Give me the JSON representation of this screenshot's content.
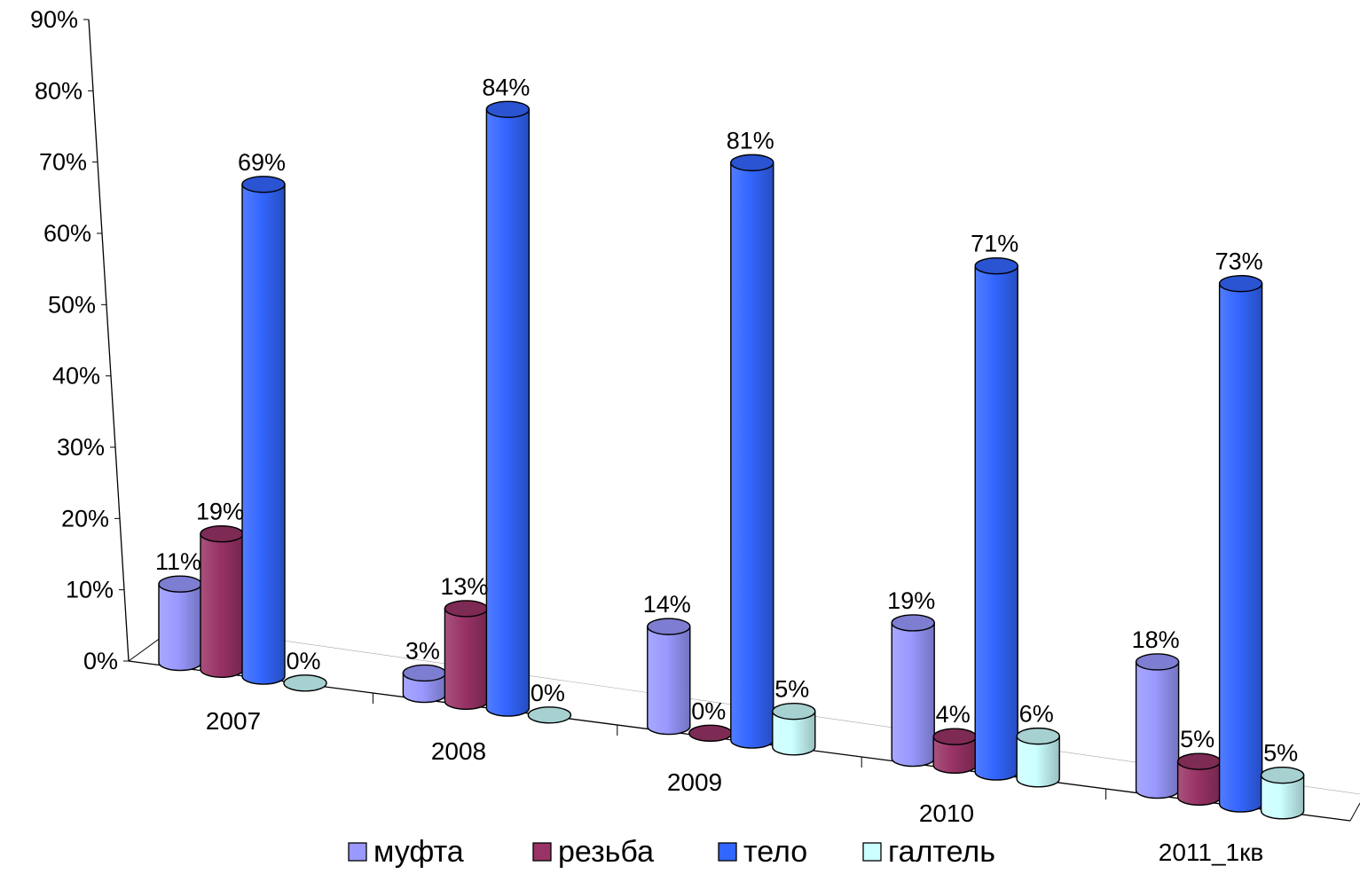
{
  "chart_data": {
    "type": "bar",
    "title": "",
    "xlabel": "",
    "ylabel": "",
    "ylim": [
      0,
      90
    ],
    "y_ticks": [
      "0%",
      "10%",
      "20%",
      "30%",
      "40%",
      "50%",
      "60%",
      "70%",
      "80%",
      "90%"
    ],
    "categories": [
      "2007",
      "2008",
      "2009",
      "2010",
      "2011_1кв"
    ],
    "series": [
      {
        "name": "муфта",
        "color": "#9999ff",
        "values": [
          11,
          3,
          14,
          19,
          18
        ],
        "labels": [
          "11%",
          "3%",
          "14%",
          "19%",
          "18%"
        ]
      },
      {
        "name": "резьба",
        "color": "#993366",
        "values": [
          19,
          13,
          0,
          4,
          5
        ],
        "labels": [
          "19%",
          "13%",
          "0%",
          "4%",
          "5%"
        ]
      },
      {
        "name": "тело",
        "color": "#3366ff",
        "values": [
          69,
          84,
          81,
          71,
          73
        ],
        "labels": [
          "69%",
          "84%",
          "81%",
          "71%",
          "73%"
        ]
      },
      {
        "name": "галтель",
        "color": "#ccffff",
        "values": [
          0,
          0,
          5,
          6,
          5
        ],
        "labels": [
          "0%",
          "0%",
          "5%",
          "6%",
          "5%"
        ]
      }
    ],
    "legend_position": "bottom",
    "grid": false,
    "style": "3d-cylinder"
  }
}
